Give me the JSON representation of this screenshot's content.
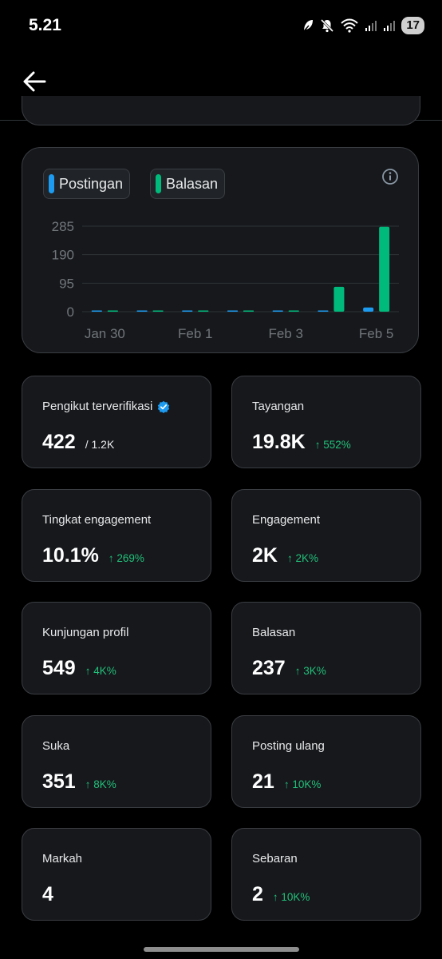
{
  "status_bar": {
    "time": "5.21",
    "battery": "17",
    "icons": [
      "leaf-icon",
      "mute-icon",
      "wifi-icon",
      "signal-icon",
      "signal-icon"
    ]
  },
  "header": {
    "back_icon": "arrow-left-icon"
  },
  "chart": {
    "legend": [
      {
        "label": "Postingan",
        "color": "#1d9bf0"
      },
      {
        "label": "Balasan",
        "color": "#00ba7c"
      }
    ],
    "info_icon": "info-icon"
  },
  "chart_data": {
    "type": "bar",
    "x_tick_labels": [
      "Jan 30",
      "Feb 1",
      "Feb 3",
      "Feb 5"
    ],
    "categories": [
      "Jan 30",
      "Jan 31",
      "Feb 1",
      "Feb 2",
      "Feb 3",
      "Feb 4",
      "Feb 5"
    ],
    "series": [
      {
        "name": "Postingan",
        "color": "#1d9bf0",
        "values": [
          0,
          0,
          0,
          0,
          0,
          1,
          14
        ]
      },
      {
        "name": "Balasan",
        "color": "#00ba7c",
        "values": [
          0,
          0,
          0,
          1,
          1,
          83,
          283
        ]
      }
    ],
    "y_ticks": [
      "285",
      "190",
      "95",
      "0"
    ],
    "ylim": [
      0,
      285
    ],
    "grid": true,
    "legend_position": "top-left"
  },
  "stats": [
    {
      "label": "Pengikut terverifikasi",
      "value": "422",
      "sub": "/ 1.2K",
      "verified": true
    },
    {
      "label": "Tayangan",
      "value": "19.8K",
      "change": "↑ 552%"
    },
    {
      "label": "Tingkat engagement",
      "value": "10.1%",
      "change": "↑ 269%"
    },
    {
      "label": "Engagement",
      "value": "2K",
      "change": "↑ 2K%"
    },
    {
      "label": "Kunjungan profil",
      "value": "549",
      "change": "↑ 4K%"
    },
    {
      "label": "Balasan",
      "value": "237",
      "change": "↑ 3K%"
    },
    {
      "label": "Suka",
      "value": "351",
      "change": "↑ 8K%"
    },
    {
      "label": "Posting ulang",
      "value": "21",
      "change": "↑ 10K%"
    },
    {
      "label": "Markah",
      "value": "4"
    },
    {
      "label": "Sebaran",
      "value": "2",
      "change": "↑ 10K%"
    }
  ]
}
